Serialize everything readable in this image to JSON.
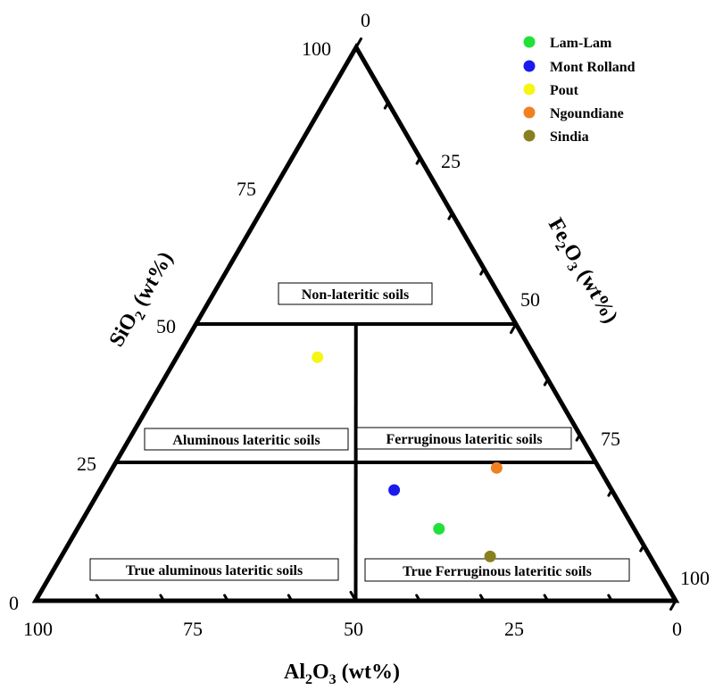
{
  "chart_data": {
    "type": "scatter",
    "subtype": "ternary",
    "axes": {
      "left": {
        "label_main": "SiO",
        "label_sub": "2",
        "label_rest": " (wt%)"
      },
      "right": {
        "label_main": "Fe",
        "label_sub": "2",
        "label_main2": "O",
        "label_sub2": "3",
        "label_rest": " (wt%)"
      },
      "bottom": {
        "label_main": "Al",
        "label_sub": "2",
        "label_main2": "O",
        "label_sub2": "3",
        "label_rest": " (wt%)"
      }
    },
    "tick_labels": {
      "sio2": [
        "25",
        "50",
        "75",
        "100"
      ],
      "fe2o3": [
        "0",
        "25",
        "50",
        "75",
        "100"
      ],
      "al2o3": [
        "100",
        "75",
        "50",
        "25",
        "0"
      ],
      "corner": "0"
    },
    "regions": [
      {
        "label": "Non-lateritic soils"
      },
      {
        "label": "Aluminous lateritic soils"
      },
      {
        "label": "Ferruginous lateritic soils"
      },
      {
        "label": "True aluminous lateritic soils"
      },
      {
        "label": "True Ferruginous lateritic soils"
      }
    ],
    "series": [
      {
        "name": "Lam-Lam",
        "color": "#22e03a",
        "points": [
          {
            "SiO2": 13,
            "Fe2O3": 56.5,
            "Al2O3": 30.5
          }
        ]
      },
      {
        "name": "Mont Rolland",
        "color": "#1a1aee",
        "points": [
          {
            "SiO2": 20,
            "Fe2O3": 46,
            "Al2O3": 34
          }
        ]
      },
      {
        "name": "Pout",
        "color": "#f5f516",
        "points": [
          {
            "SiO2": 44,
            "Fe2O3": 22,
            "Al2O3": 34
          }
        ]
      },
      {
        "name": "Ngoundiane",
        "color": "#f08020",
        "points": [
          {
            "SiO2": 24,
            "Fe2O3": 60,
            "Al2O3": 16
          }
        ]
      },
      {
        "name": "Sindia",
        "color": "#8a7f1f",
        "points": [
          {
            "SiO2": 8,
            "Fe2O3": 67,
            "Al2O3": 25
          }
        ]
      }
    ],
    "legend_position": "top-right"
  }
}
